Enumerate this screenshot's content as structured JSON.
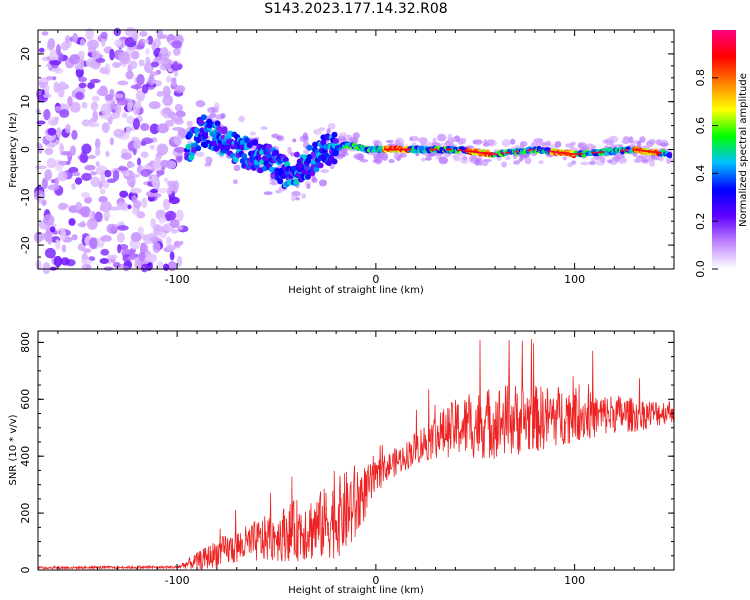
{
  "title": "S143.2023.177.14.32.R08",
  "chart_data": [
    {
      "type": "heatmap",
      "name": "spectrogram",
      "xlabel": "Height of straight line (km)",
      "ylabel": "Frequency (Hz)",
      "xlim": [
        -170,
        150
      ],
      "ylim": [
        -25,
        25
      ],
      "xticks": [
        -100,
        0,
        100
      ],
      "xtick_labels": [
        "-100",
        "0",
        "100"
      ],
      "yticks": [
        -20,
        -10,
        0,
        10,
        20
      ],
      "ytick_labels": [
        "-20",
        "-10",
        "0",
        "10",
        "20"
      ],
      "colorbar": {
        "label": "Normalized spectral amplitude",
        "range": [
          0,
          1
        ],
        "ticks": [
          0.0,
          0.2,
          0.4,
          0.6,
          0.8
        ],
        "tick_labels": [
          "0.0",
          "0.2",
          "0.4",
          "0.6",
          "0.8"
        ],
        "colors": [
          "#ffffff",
          "#c084ff",
          "#6000ff",
          "#0000ff",
          "#00c0ff",
          "#00ff00",
          "#ffff00",
          "#ff8000",
          "#ff0000",
          "#ff0080"
        ]
      },
      "features": {
        "noise_region_km": [
          -170,
          -97
        ],
        "signal_track": [
          {
            "x": -95,
            "y": 0
          },
          {
            "x": -88,
            "y": 4
          },
          {
            "x": -80,
            "y": 3
          },
          {
            "x": -70,
            "y": 0
          },
          {
            "x": -55,
            "y": -2
          },
          {
            "x": -45,
            "y": -5
          },
          {
            "x": -35,
            "y": -3
          },
          {
            "x": -25,
            "y": 0
          },
          {
            "x": -15,
            "y": 1
          },
          {
            "x": -5,
            "y": 0
          },
          {
            "x": 10,
            "y": 0
          },
          {
            "x": 40,
            "y": 0
          },
          {
            "x": 60,
            "y": -1
          },
          {
            "x": 80,
            "y": 0
          },
          {
            "x": 100,
            "y": -1
          },
          {
            "x": 130,
            "y": 0
          },
          {
            "x": 148,
            "y": -1
          }
        ]
      }
    },
    {
      "type": "line",
      "name": "snr",
      "xlabel": "Height of straight line (km)",
      "ylabel": "SNR (10 * v/v)",
      "xlim": [
        -170,
        150
      ],
      "ylim": [
        0,
        840
      ],
      "xticks": [
        -100,
        0,
        100
      ],
      "xtick_labels": [
        "-100",
        "0",
        "100"
      ],
      "yticks": [
        0,
        200,
        400,
        600,
        800
      ],
      "ytick_labels": [
        "0",
        "200",
        "400",
        "600",
        "800"
      ],
      "color": "#ee2222",
      "series": [
        {
          "name": "SNR",
          "x": [
            -170,
            -100,
            -86,
            -80,
            -70,
            -60,
            -50,
            -40,
            -30,
            -20,
            -10,
            -5,
            0,
            5,
            10,
            15,
            20,
            30,
            40,
            50,
            60,
            70,
            80,
            90,
            100,
            110,
            120,
            130,
            140,
            150
          ],
          "mean": [
            8,
            10,
            40,
            60,
            80,
            100,
            120,
            140,
            150,
            180,
            230,
            280,
            320,
            360,
            380,
            400,
            430,
            470,
            500,
            510,
            520,
            530,
            530,
            540,
            550,
            540,
            550,
            545,
            550,
            560
          ],
          "amp": [
            4,
            5,
            40,
            50,
            60,
            75,
            90,
            110,
            120,
            140,
            150,
            90,
            60,
            50,
            50,
            50,
            60,
            80,
            100,
            120,
            130,
            130,
            120,
            110,
            100,
            80,
            70,
            60,
            50,
            40
          ]
        }
      ]
    }
  ]
}
